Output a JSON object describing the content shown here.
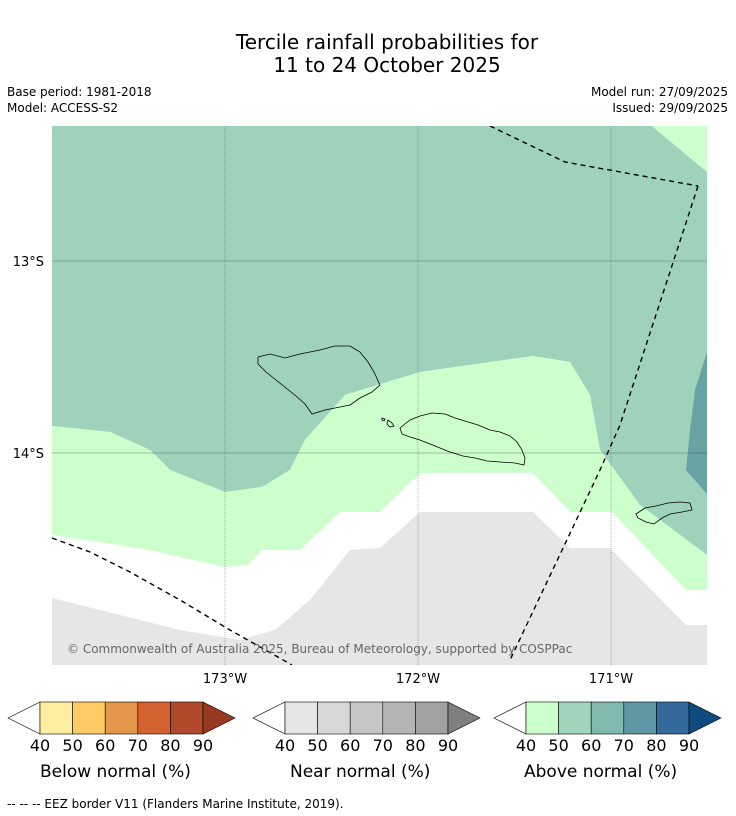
{
  "title": {
    "line1": "Tercile rainfall probabilities for",
    "line2": "11 to 24 October 2025"
  },
  "meta": {
    "base_period": "Base period: 1981-2018",
    "model": "Model: ACCESS-S2",
    "model_run": "Model run: 27/09/2025",
    "issued": "Issued: 29/09/2025"
  },
  "map": {
    "lat_labels": [
      "13°S",
      "14°S"
    ],
    "lon_labels": [
      "173°W",
      "172°W",
      "171°W"
    ],
    "copyright": "© Commonwealth of Australia 2025, Bureau of Meteorology, supported by COSPPac"
  },
  "colorbars": [
    {
      "name": "below",
      "label": "Below normal (%)",
      "ticks": [
        "40",
        "50",
        "60",
        "70",
        "80",
        "90"
      ],
      "colors": [
        "#ffffff",
        "#ffeda0",
        "#fecb64",
        "#e4964a",
        "#d2622f",
        "#b04a2a",
        "#973a22"
      ]
    },
    {
      "name": "near",
      "label": "Near normal (%)",
      "ticks": [
        "40",
        "50",
        "60",
        "70",
        "80",
        "90"
      ],
      "colors": [
        "#ffffff",
        "#e6e6e6",
        "#d7d7d7",
        "#c6c6c6",
        "#b4b4b4",
        "#a1a1a1",
        "#7f7f7f"
      ]
    },
    {
      "name": "above",
      "label": "Above normal (%)",
      "ticks": [
        "40",
        "50",
        "60",
        "70",
        "80",
        "90"
      ],
      "colors": [
        "#ffffff",
        "#ccffcc",
        "#a1d4bd",
        "#82b9ae",
        "#5e97a3",
        "#346a9b",
        "#0d4b80"
      ]
    }
  ],
  "footer": "--  --  -- EEZ border V11 (Flanders Marine Institute, 2019)."
}
